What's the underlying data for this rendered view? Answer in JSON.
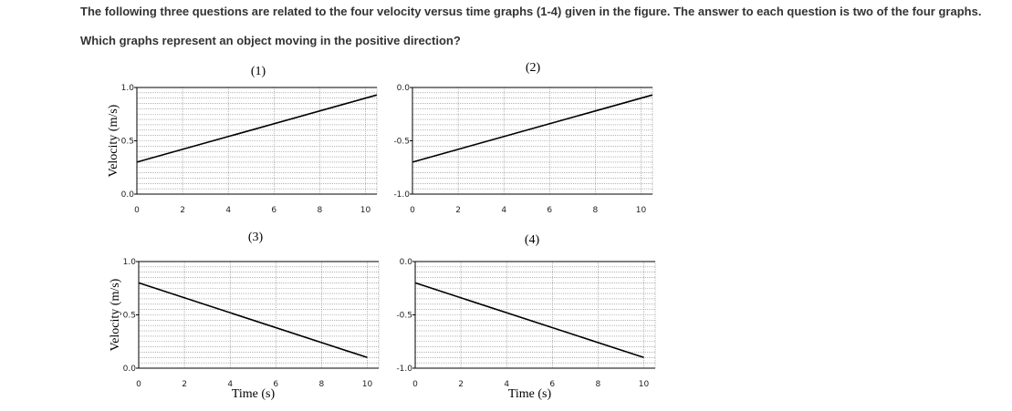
{
  "question": {
    "intro": "The following three questions are related to the four velocity versus time graphs (1-4) given in the figure.  The answer to each question is two of the four graphs.",
    "prompt": "Which graphs represent an object moving in the positive direction?"
  },
  "colors": {
    "text": "#333333",
    "line": "#000000",
    "grid": "#888888"
  },
  "chart_data": [
    {
      "type": "line",
      "title": "(1)",
      "xlabel": "",
      "ylabel": "Velocity (m/s)",
      "xlim": [
        0,
        10.5
      ],
      "ylim": [
        0,
        1.0
      ],
      "x_ticks": [
        "0",
        "2",
        "4",
        "6",
        "8",
        "10"
      ],
      "y_ticks": [
        "0.0",
        "0.5",
        "1.0"
      ],
      "grid": true,
      "series": [
        {
          "x": [
            0,
            10.5
          ],
          "y": [
            0.3,
            0.93
          ]
        }
      ]
    },
    {
      "type": "line",
      "title": "(2)",
      "xlabel": "",
      "ylabel": "",
      "xlim": [
        0,
        10.5
      ],
      "ylim": [
        -1.0,
        0.0
      ],
      "x_ticks": [
        "0",
        "2",
        "4",
        "6",
        "8",
        "10"
      ],
      "y_ticks": [
        "-1.0",
        "-0.5",
        "0.0"
      ],
      "grid": true,
      "series": [
        {
          "x": [
            0,
            10.5
          ],
          "y": [
            -0.7,
            -0.07
          ]
        }
      ]
    },
    {
      "type": "line",
      "title": "(3)",
      "xlabel": "Time (s)",
      "ylabel": "Velocity (m/s)",
      "xlim": [
        0,
        10.5
      ],
      "ylim": [
        0,
        1.0
      ],
      "x_ticks": [
        "0",
        "2",
        "4",
        "6",
        "8",
        "10"
      ],
      "y_ticks": [
        "0.0",
        "0.5",
        "1.0"
      ],
      "grid": true,
      "series": [
        {
          "x": [
            0,
            10
          ],
          "y": [
            0.8,
            0.1
          ]
        }
      ]
    },
    {
      "type": "line",
      "title": "(4)",
      "xlabel": "Time (s)",
      "ylabel": "",
      "xlim": [
        0,
        10.5
      ],
      "ylim": [
        -1.0,
        0.0
      ],
      "x_ticks": [
        "0",
        "2",
        "4",
        "6",
        "8",
        "10"
      ],
      "y_ticks": [
        "-1.0",
        "-0.5",
        "0.0"
      ],
      "grid": true,
      "series": [
        {
          "x": [
            0,
            10
          ],
          "y": [
            -0.2,
            -0.9
          ]
        }
      ]
    }
  ]
}
